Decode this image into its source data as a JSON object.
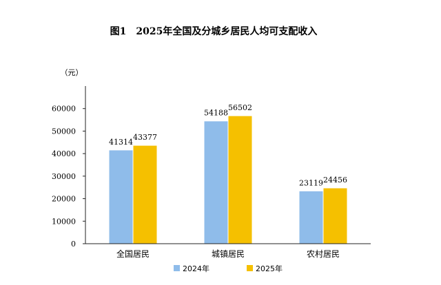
{
  "chart_data": {
    "type": "bar",
    "title": "图1　2025年全国及分城乡居民人均可支配收入",
    "unit_label": "（元）",
    "categories": [
      "全国居民",
      "城镇居民",
      "农村居民"
    ],
    "series": [
      {
        "name": "2024年",
        "values": [
          41314,
          54188,
          23119
        ],
        "color": "#8fbcea"
      },
      {
        "name": "2025年",
        "values": [
          43377,
          56502,
          24456
        ],
        "color": "#f5c000"
      }
    ],
    "ylim": [
      0,
      70000
    ],
    "yticks": [
      0,
      10000,
      20000,
      30000,
      40000,
      50000,
      60000
    ],
    "ytick_labels": [
      "0",
      "10000",
      "20000",
      "30000",
      "40000",
      "50000",
      "60000"
    ],
    "data_labels": [
      [
        "41314",
        "54188",
        "23119"
      ],
      [
        "43377",
        "56502",
        "24456"
      ]
    ],
    "grid": false,
    "legend_position": "bottom"
  }
}
